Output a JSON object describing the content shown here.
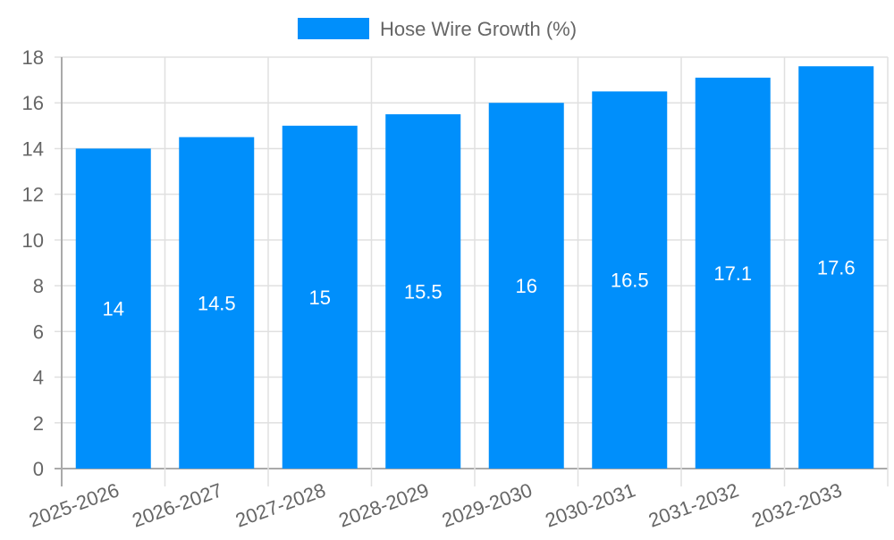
{
  "chart_data": {
    "type": "bar",
    "title": "",
    "categories": [
      "2025-2026",
      "2026-2027",
      "2027-2028",
      "2028-2029",
      "2029-2030",
      "2030-2031",
      "2031-2032",
      "2032-2033"
    ],
    "series": [
      {
        "name": "Hose Wire Growth (%)",
        "values": [
          14,
          14.5,
          15,
          15.5,
          16,
          16.5,
          17.1,
          17.6
        ],
        "color": "#008ffb"
      }
    ],
    "xlabel": "",
    "ylabel": "",
    "ylim": [
      0,
      18
    ],
    "yticks": [
      0,
      2,
      4,
      6,
      8,
      10,
      12,
      14,
      16,
      18
    ],
    "grid": true,
    "legend_position": "top",
    "data_labels": true
  },
  "legend": {
    "label": "Hose Wire Growth (%)"
  }
}
